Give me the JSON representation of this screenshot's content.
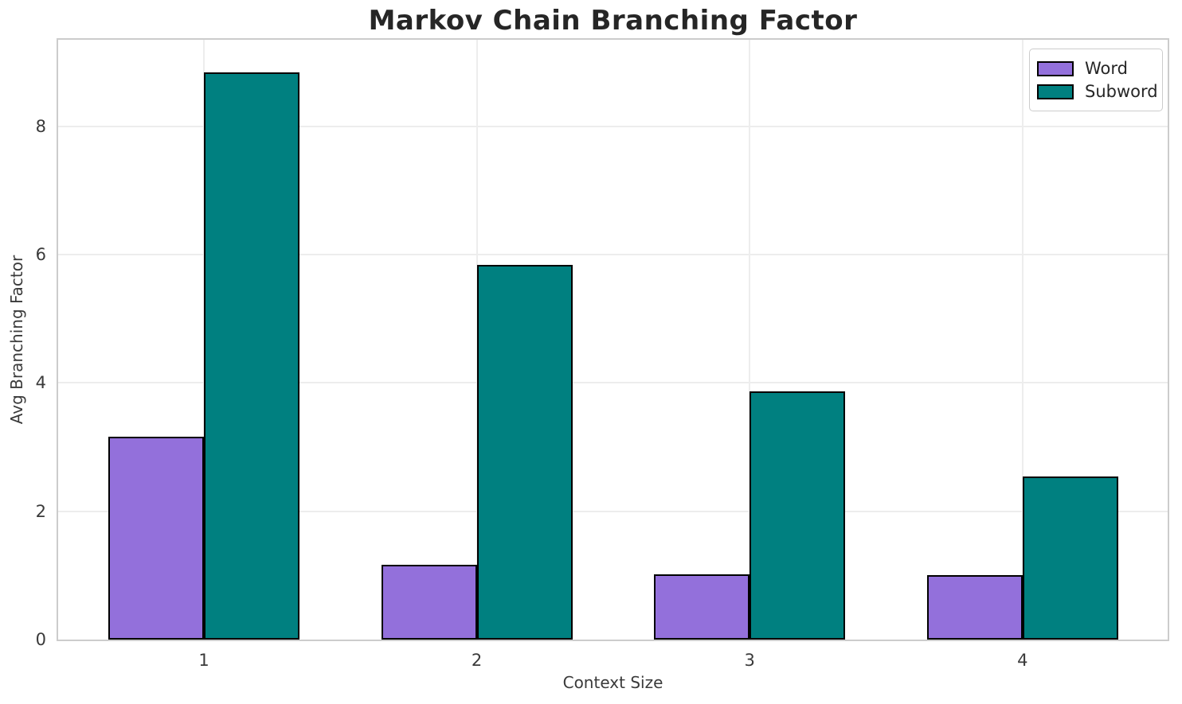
{
  "title": "Markov Chain Branching Factor",
  "chart_data": {
    "type": "bar",
    "title": "Markov Chain Branching Factor",
    "xlabel": "Context Size",
    "ylabel": "Avg Branching Factor",
    "categories": [
      "1",
      "2",
      "3",
      "4"
    ],
    "series": [
      {
        "name": "Word",
        "color": "#9370DB",
        "values": [
          3.16,
          1.16,
          1.02,
          1.01
        ]
      },
      {
        "name": "Subword",
        "color": "#008080",
        "values": [
          8.84,
          5.84,
          3.87,
          2.54
        ]
      }
    ],
    "yticks": [
      0,
      2,
      4,
      6,
      8
    ],
    "ylim": [
      0,
      9.35
    ],
    "grid": true,
    "legend_position": "upper right",
    "bar_edge_color": "#000000",
    "grid_color": "#ededed",
    "spine_color": "#cccccc"
  }
}
